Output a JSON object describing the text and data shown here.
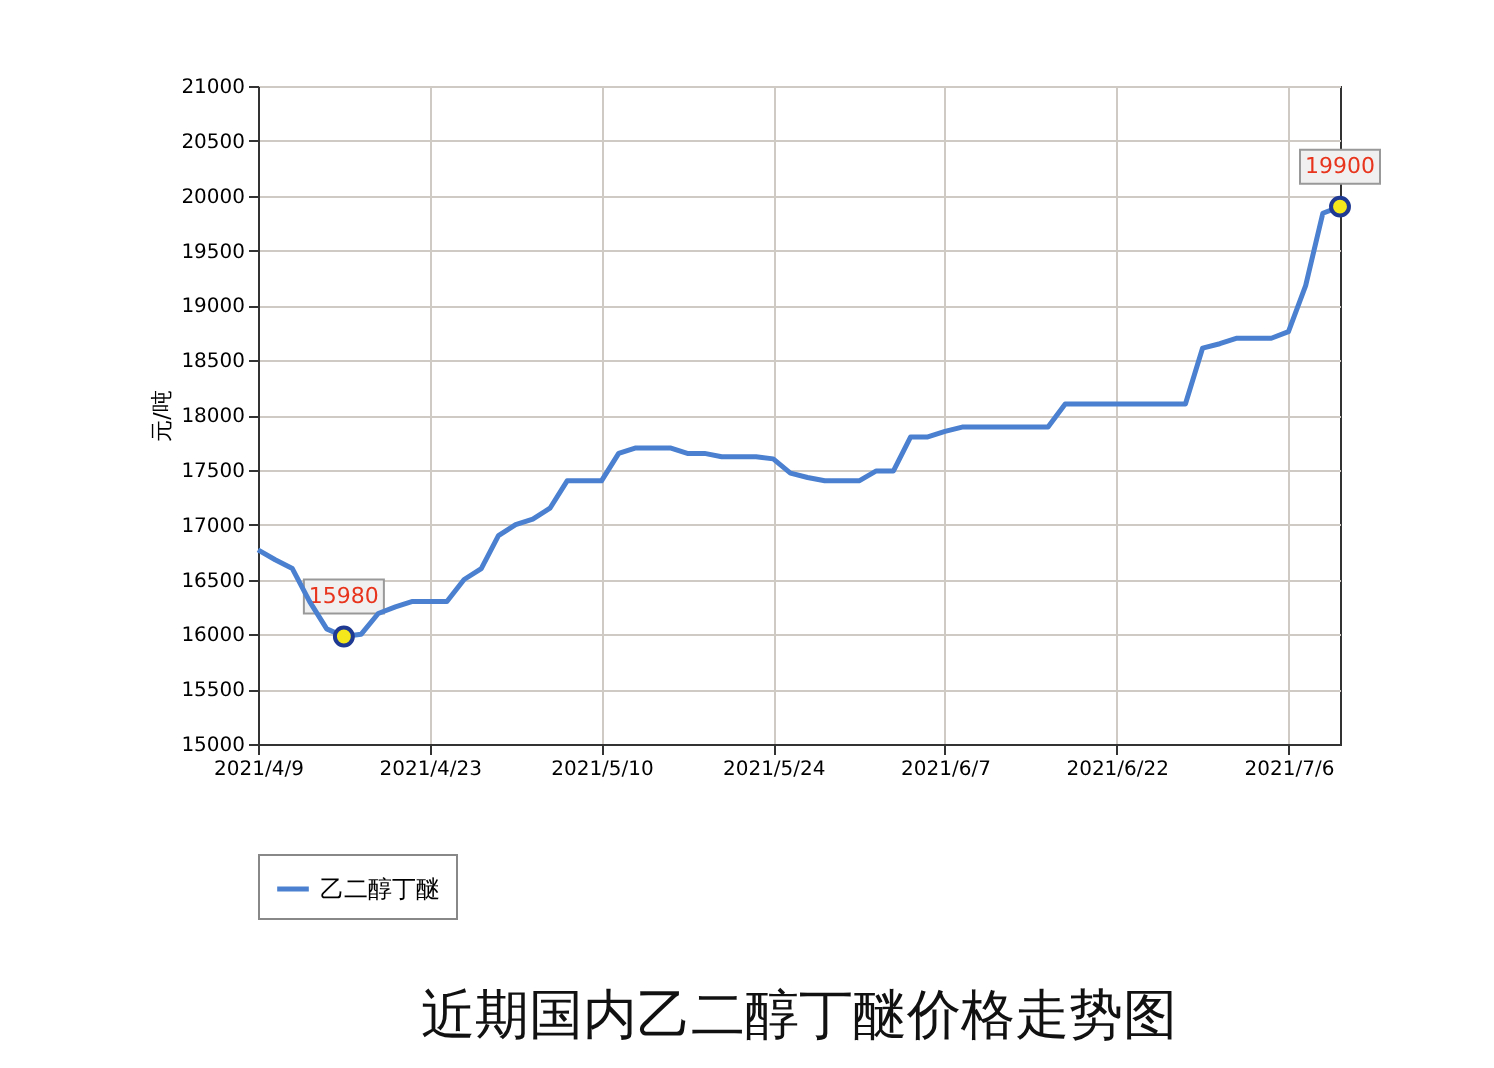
{
  "chart_data": {
    "type": "line",
    "title": "近期国内乙二醇丁醚价格走势图",
    "ylabel": "元/吨",
    "categories": [
      "2021/4/9",
      null,
      null,
      null,
      null,
      null,
      null,
      null,
      null,
      null,
      "2021/4/23",
      null,
      null,
      null,
      null,
      null,
      null,
      null,
      null,
      null,
      "2021/5/10",
      null,
      null,
      null,
      null,
      null,
      null,
      null,
      null,
      null,
      "2021/5/24",
      null,
      null,
      null,
      null,
      null,
      null,
      null,
      null,
      null,
      "2021/6/7",
      null,
      null,
      null,
      null,
      null,
      null,
      null,
      null,
      null,
      "2021/6/22",
      null,
      null,
      null,
      null,
      null,
      null,
      null,
      null,
      null,
      "2021/7/6",
      null,
      null,
      null
    ],
    "series": [
      {
        "name": "乙二醇丁醚",
        "color": "#4a80cf",
        "values": [
          16770,
          16680,
          16600,
          16300,
          16050,
          15980,
          16000,
          16190,
          16250,
          16300,
          16300,
          16300,
          16500,
          16600,
          16900,
          17000,
          17050,
          17150,
          17400,
          17400,
          17400,
          17650,
          17700,
          17700,
          17700,
          17650,
          17650,
          17620,
          17620,
          17620,
          17600,
          17470,
          17430,
          17400,
          17400,
          17400,
          17490,
          17490,
          17800,
          17800,
          17850,
          17890,
          17890,
          17890,
          17890,
          17890,
          17890,
          18100,
          18100,
          18100,
          18100,
          18100,
          18100,
          18100,
          18100,
          18610,
          18650,
          18700,
          18700,
          18700,
          18760,
          19180,
          19840,
          19900
        ]
      },
      {
        "type": "scatter",
        "color": "#f4e81c",
        "marker": "circle",
        "values": [
          null,
          null,
          null,
          null,
          null,
          15980,
          null,
          null,
          null,
          null,
          null,
          null,
          null,
          null,
          null,
          null,
          null,
          null,
          null,
          null,
          null,
          null,
          null,
          null,
          null,
          null,
          null,
          null,
          null,
          null,
          null,
          null,
          null,
          null,
          null,
          null,
          null,
          null,
          null,
          null,
          null,
          null,
          null,
          null,
          null,
          null,
          null,
          null,
          null,
          null,
          null,
          null,
          null,
          null,
          null,
          null,
          null,
          null,
          null,
          null,
          null,
          null,
          null,
          19900
        ],
        "value_labels": [
          null,
          null,
          null,
          null,
          null,
          "15980",
          null,
          null,
          null,
          null,
          null,
          null,
          null,
          null,
          null,
          null,
          null,
          null,
          null,
          null,
          null,
          null,
          null,
          null,
          null,
          null,
          null,
          null,
          null,
          null,
          null,
          null,
          null,
          null,
          null,
          null,
          null,
          null,
          null,
          null,
          null,
          null,
          null,
          null,
          null,
          null,
          null,
          null,
          null,
          null,
          null,
          null,
          null,
          null,
          null,
          null,
          null,
          null,
          null,
          null,
          null,
          null,
          null,
          "19900"
        ]
      }
    ],
    "ylim": [
      15000,
      21000
    ],
    "yticks": [
      15000,
      15500,
      16000,
      16500,
      17000,
      17500,
      18000,
      18500,
      19000,
      19500,
      20000,
      20500,
      21000
    ],
    "grid": true,
    "legend": "bottom"
  }
}
